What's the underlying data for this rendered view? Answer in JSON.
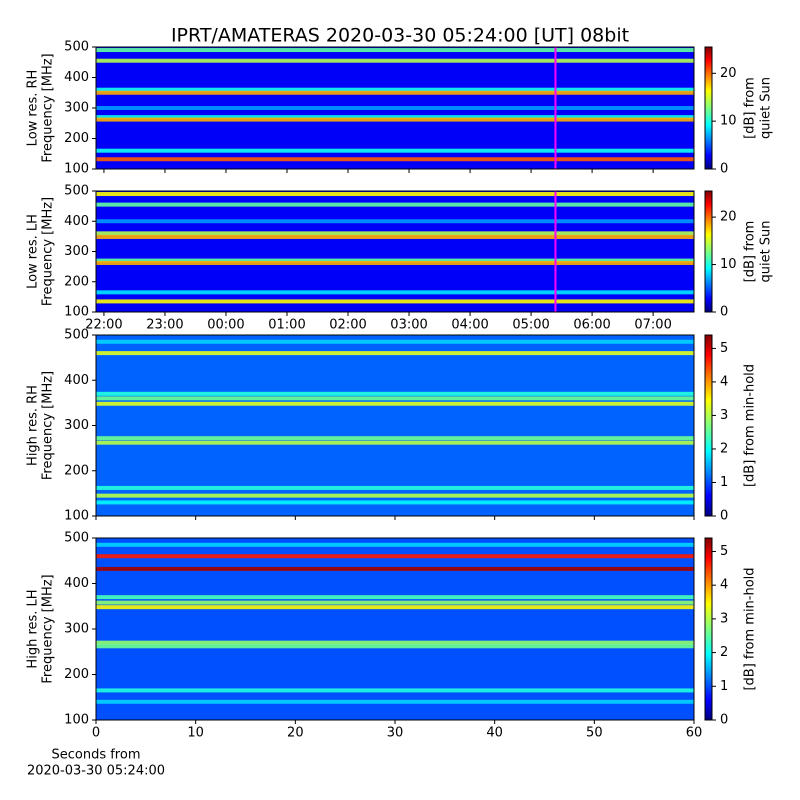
{
  "chart_data": [
    {
      "type": "spectrogram",
      "title": "IPRT/AMATERAS 2020-03-30 05:24:00 [UT]   08bit",
      "ylabel": [
        "Low res. RH",
        "Frequency [MHz]"
      ],
      "ylim": [
        100,
        500
      ],
      "yticks": [
        100,
        200,
        300,
        400,
        500
      ],
      "xlim": [
        21.87,
        31.67
      ],
      "marker_x": 29.4,
      "marker_color": "#ff00ff",
      "background_level": 3,
      "bands": [
        {
          "freq": 490,
          "level": 12
        },
        {
          "freq": 455,
          "level": 14
        },
        {
          "freq": 360,
          "level": 10
        },
        {
          "freq": 350,
          "level": 18
        },
        {
          "freq": 300,
          "level": 7
        },
        {
          "freq": 270,
          "level": 10
        },
        {
          "freq": 262,
          "level": 18
        },
        {
          "freq": 160,
          "level": 10
        },
        {
          "freq": 132,
          "level": 20
        }
      ],
      "clim": [
        0,
        25.5
      ],
      "cticks": [
        0,
        10,
        20
      ],
      "clabel": [
        "[dB] from",
        "quiet Sun"
      ]
    },
    {
      "type": "spectrogram",
      "ylabel": [
        "Low res. LH",
        "Frequency [MHz]"
      ],
      "ylim": [
        100,
        500
      ],
      "yticks": [
        100,
        200,
        300,
        400,
        500
      ],
      "xlim": [
        21.87,
        31.67
      ],
      "xticks": [
        {
          "value": 22,
          "label": "22:00"
        },
        {
          "value": 23,
          "label": "23:00"
        },
        {
          "value": 24,
          "label": "00:00"
        },
        {
          "value": 25,
          "label": "01:00"
        },
        {
          "value": 26,
          "label": "02:00"
        },
        {
          "value": 27,
          "label": "03:00"
        },
        {
          "value": 28,
          "label": "04:00"
        },
        {
          "value": 29,
          "label": "05:00"
        },
        {
          "value": 30,
          "label": "06:00"
        },
        {
          "value": 31,
          "label": "07:00"
        }
      ],
      "marker_x": 29.4,
      "marker_color": "#ff00ff",
      "background_level": 3,
      "bands": [
        {
          "freq": 490,
          "level": 16
        },
        {
          "freq": 455,
          "level": 12
        },
        {
          "freq": 400,
          "level": 7
        },
        {
          "freq": 360,
          "level": 14
        },
        {
          "freq": 348,
          "level": 18
        },
        {
          "freq": 270,
          "level": 12
        },
        {
          "freq": 262,
          "level": 18
        },
        {
          "freq": 165,
          "level": 9
        },
        {
          "freq": 135,
          "level": 16
        }
      ],
      "clim": [
        0,
        25.5
      ],
      "cticks": [
        0,
        10,
        20
      ],
      "clabel": [
        "[dB] from",
        "quiet Sun"
      ]
    },
    {
      "type": "spectrogram",
      "ylabel": [
        "High res. RH",
        "Frequency [MHz]"
      ],
      "ylim": [
        100,
        500
      ],
      "yticks": [
        100,
        200,
        300,
        400,
        500
      ],
      "xlim": [
        0,
        60
      ],
      "background_level": 1.2,
      "bands": [
        {
          "freq": 485,
          "level": 1.8
        },
        {
          "freq": 460,
          "level": 3.2
        },
        {
          "freq": 370,
          "level": 2.2
        },
        {
          "freq": 360,
          "level": 2.6
        },
        {
          "freq": 348,
          "level": 3.2
        },
        {
          "freq": 272,
          "level": 2.6
        },
        {
          "freq": 262,
          "level": 3
        },
        {
          "freq": 162,
          "level": 2.2
        },
        {
          "freq": 145,
          "level": 3
        },
        {
          "freq": 130,
          "level": 2
        }
      ],
      "clim": [
        0,
        5.4
      ],
      "cticks": [
        0,
        1,
        2,
        3,
        4,
        5
      ],
      "clabel": [
        "[dB] from min-hold"
      ]
    },
    {
      "type": "spectrogram",
      "ylabel": [
        "High res. LH",
        "Frequency [MHz]"
      ],
      "ylim": [
        100,
        500
      ],
      "yticks": [
        100,
        200,
        300,
        400,
        500
      ],
      "xlim": [
        0,
        60
      ],
      "xticks": [
        0,
        10,
        20,
        30,
        40,
        50,
        60
      ],
      "xlabel": [
        "Seconds from",
        "2020-03-30 05:24:00"
      ],
      "background_level": 1.1,
      "bands": [
        {
          "freq": 485,
          "level": 1.8
        },
        {
          "freq": 460,
          "level": 4.6
        },
        {
          "freq": 432,
          "level": 5.2
        },
        {
          "freq": 370,
          "level": 2.4
        },
        {
          "freq": 358,
          "level": 2.8
        },
        {
          "freq": 348,
          "level": 3.4
        },
        {
          "freq": 270,
          "level": 2.8
        },
        {
          "freq": 262,
          "level": 2.6
        },
        {
          "freq": 165,
          "level": 2.2
        },
        {
          "freq": 140,
          "level": 1.8
        }
      ],
      "clim": [
        0,
        5.4
      ],
      "cticks": [
        0,
        1,
        2,
        3,
        4,
        5
      ],
      "clabel": [
        "[dB] from min-hold"
      ]
    }
  ]
}
